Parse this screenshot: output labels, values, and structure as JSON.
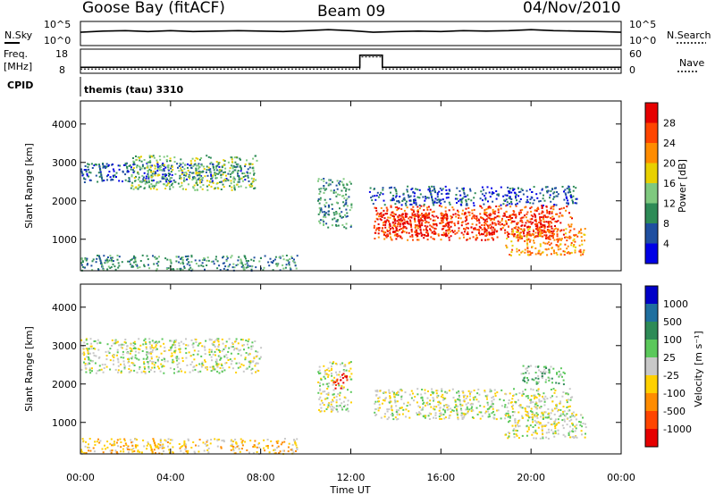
{
  "header": {
    "station": "Goose Bay (fitACF)",
    "beam": "Beam 09",
    "date": "04/Nov/2010"
  },
  "top_panels": {
    "nsky_label": "N.Sky",
    "nsearch_label": "N.Search",
    "nsky_ticks": [
      "10^5",
      "10^0"
    ],
    "nsearch_ticks": [
      "10^5",
      "10^0"
    ],
    "freq_label_1": "Freq.",
    "freq_label_2": "[MHz]",
    "freq_ticks": [
      "18",
      "8"
    ],
    "nave_label": "Nave",
    "nave_ticks": [
      "60",
      "0"
    ],
    "cpid_label": "CPID",
    "cpid_value": "themis (tau) 3310"
  },
  "chart_data": [
    {
      "type": "line",
      "name": "sky-noise",
      "x": [
        0,
        1,
        2,
        3,
        4,
        5,
        6,
        7,
        8,
        9,
        10,
        11,
        12,
        13,
        14,
        15,
        16,
        17,
        18,
        19,
        20,
        21,
        22,
        23,
        24
      ],
      "y": [
        0.55,
        0.6,
        0.62,
        0.58,
        0.62,
        0.58,
        0.6,
        0.62,
        0.6,
        0.58,
        0.62,
        0.66,
        0.62,
        0.55,
        0.58,
        0.6,
        0.58,
        0.62,
        0.6,
        0.62,
        0.66,
        0.62,
        0.6,
        0.58,
        0.55
      ],
      "ylim": [
        0,
        1
      ]
    },
    {
      "type": "line",
      "name": "frequency-nave",
      "x": [
        0,
        12.4,
        12.4,
        13.4,
        13.4,
        24
      ],
      "y": [
        10.5,
        10.5,
        15.5,
        15.5,
        10.5,
        10.5
      ],
      "ylim": [
        8,
        18
      ]
    },
    {
      "type": "heatmap",
      "name": "power",
      "xlabel": "",
      "ylabel": "Slant Range [km]",
      "xlim": [
        0,
        24
      ],
      "ylim": [
        180,
        4600
      ],
      "colorbar_label": "Power [dB]",
      "colorbar_ticks": [
        "4",
        "8",
        "12",
        "16",
        "20",
        "24",
        "28"
      ],
      "colorbar_colors": [
        "#0000e6",
        "#1f4fa0",
        "#2e8b57",
        "#7fc97f",
        "#e8d000",
        "#ff8c00",
        "#ff4500",
        "#e60000"
      ],
      "regions": [
        {
          "t0": 0.0,
          "t1": 9.6,
          "r0": 200,
          "r1": 600,
          "level": 2
        },
        {
          "t0": 0.0,
          "t1": 7.5,
          "r0": 2500,
          "r1": 3000,
          "level": 1
        },
        {
          "t0": 2.2,
          "t1": 7.8,
          "r0": 2300,
          "r1": 3200,
          "level": 3
        },
        {
          "t0": 10.5,
          "t1": 12.0,
          "r0": 1300,
          "r1": 2600,
          "level": 2
        },
        {
          "t0": 13.0,
          "t1": 21.8,
          "r0": 1000,
          "r1": 1900,
          "level": 6
        },
        {
          "t0": 13.0,
          "t1": 21.0,
          "r0": 1100,
          "r1": 1700,
          "level": 7
        },
        {
          "t0": 18.8,
          "t1": 22.4,
          "r0": 600,
          "r1": 1300,
          "level": 5
        },
        {
          "t0": 12.8,
          "t1": 22.0,
          "r0": 1900,
          "r1": 2400,
          "level": 1
        }
      ]
    },
    {
      "type": "heatmap",
      "name": "velocity",
      "xlabel": "Time UT",
      "ylabel": "Slant Range [km]",
      "xlim": [
        0,
        24
      ],
      "ylim": [
        180,
        4600
      ],
      "x_ticks": [
        "00:00",
        "04:00",
        "08:00",
        "12:00",
        "16:00",
        "20:00",
        "00:00"
      ],
      "colorbar_label": "Velocity [m s⁻¹]",
      "colorbar_ticks": [
        "1000",
        "500",
        "100",
        "25",
        "-25",
        "-100",
        "-500",
        "-1000"
      ],
      "colorbar_colors": [
        "#0000c8",
        "#1f6f9f",
        "#2e8b57",
        "#5bc85b",
        "#c8c8c8",
        "#ffd000",
        "#ff8c00",
        "#ff4500",
        "#e60000"
      ],
      "regions": [
        {
          "t0": 0.0,
          "t1": 9.6,
          "r0": 200,
          "r1": 600,
          "level": 5
        },
        {
          "t0": 0.0,
          "t1": 8.0,
          "r0": 2300,
          "r1": 3200,
          "level": 4
        },
        {
          "t0": 10.5,
          "t1": 12.0,
          "r0": 1300,
          "r1": 2600,
          "level": 4
        },
        {
          "t0": 13.0,
          "t1": 21.8,
          "r0": 1100,
          "r1": 1900,
          "level": 4
        },
        {
          "t0": 18.8,
          "t1": 22.4,
          "r0": 600,
          "r1": 1300,
          "level": 4
        },
        {
          "t0": 11.2,
          "t1": 11.8,
          "r0": 1900,
          "r1": 2300,
          "level": 8
        },
        {
          "t0": 19.5,
          "t1": 21.5,
          "r0": 2000,
          "r1": 2500,
          "level": 3
        }
      ]
    }
  ]
}
